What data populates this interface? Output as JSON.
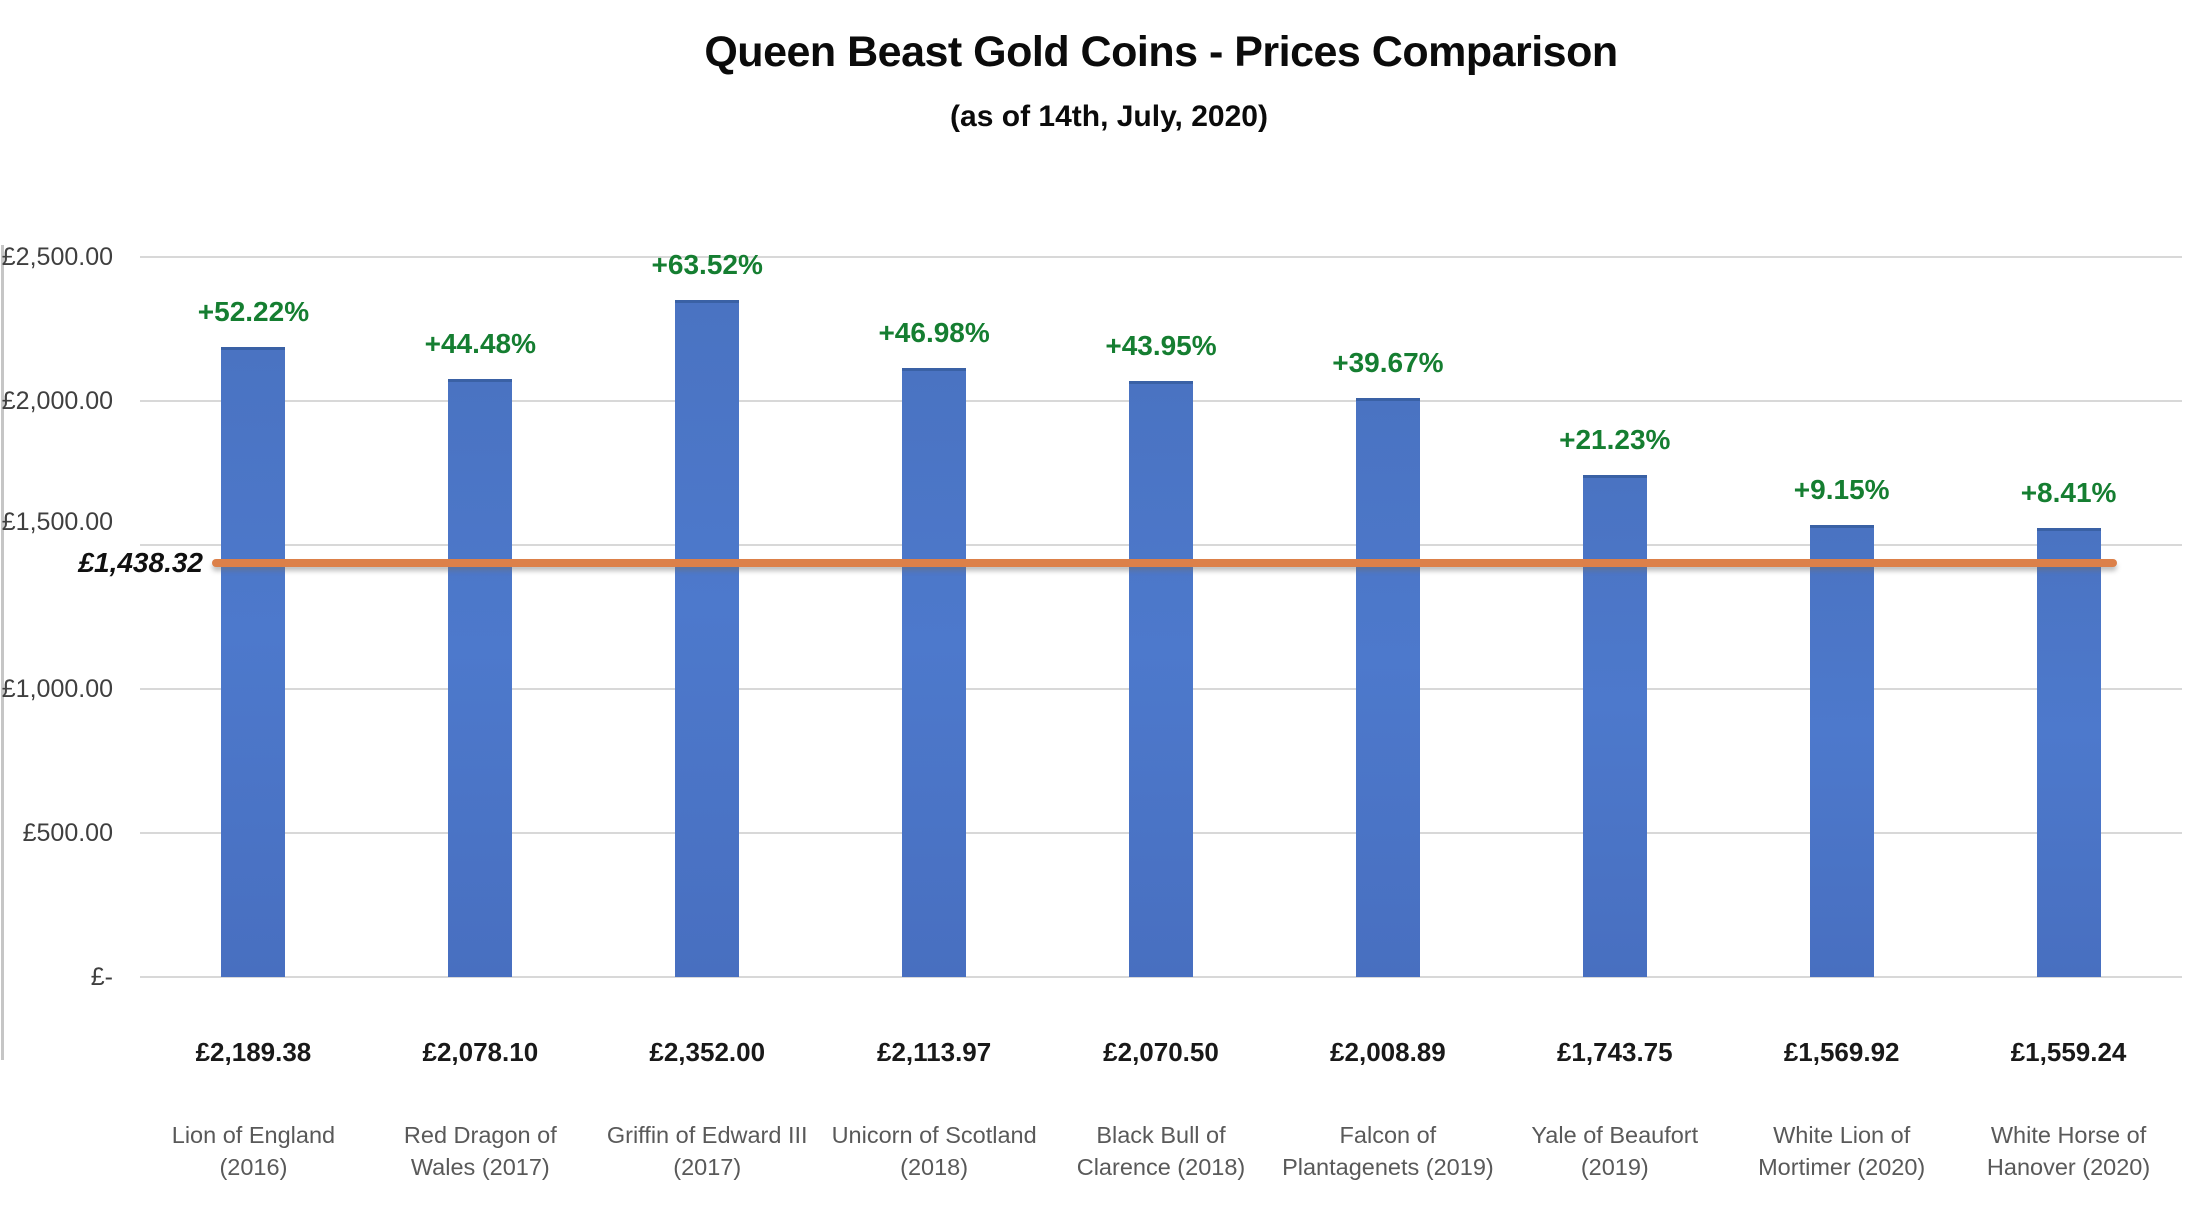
{
  "chart_data": {
    "type": "bar",
    "title": "Queen Beast Gold Coins - Prices Comparison",
    "subtitle": "(as of 14th, July, 2020)",
    "categories": [
      "Lion of England\n(2016)",
      "Red Dragon of\nWales (2017)",
      "Griffin of Edward III\n(2017)",
      "Unicorn of Scotland\n(2018)",
      "Black Bull of\nClarence (2018)",
      "Falcon of\nPlantagenets (2019)",
      "Yale of Beaufort\n(2019)",
      "White Lion of\nMortimer (2020)",
      "White Horse of\nHanover (2020)"
    ],
    "values": [
      2189.38,
      2078.1,
      2352.0,
      2113.97,
      2070.5,
      2008.89,
      1743.75,
      1569.92,
      1559.24
    ],
    "price_labels": [
      "£2,189.38",
      "£2,078.10",
      "£2,352.00",
      "£2,113.97",
      "£2,070.50",
      "£2,008.89",
      "£1,743.75",
      "£1,569.92",
      "£1,559.24"
    ],
    "pct_change_labels": [
      "+52.22%",
      "+44.48%",
      "+63.52%",
      "+46.98%",
      "+43.95%",
      "+39.67%",
      "+21.23%",
      "+9.15%",
      "+8.41%"
    ],
    "y_ticks": [
      "£2,500.00",
      "£2,000.00",
      "£1,500.00",
      "£1,000.00",
      "£500.00",
      "£-"
    ],
    "ylim": [
      0,
      2500
    ],
    "grid": "horizontal",
    "legend": "none",
    "reference_line": {
      "value": 1438.32,
      "label": "£1,438.32",
      "color": "#dc8049"
    },
    "bar_color": "#4b76c7",
    "pct_label_color": "#157e31",
    "currency": "£"
  }
}
